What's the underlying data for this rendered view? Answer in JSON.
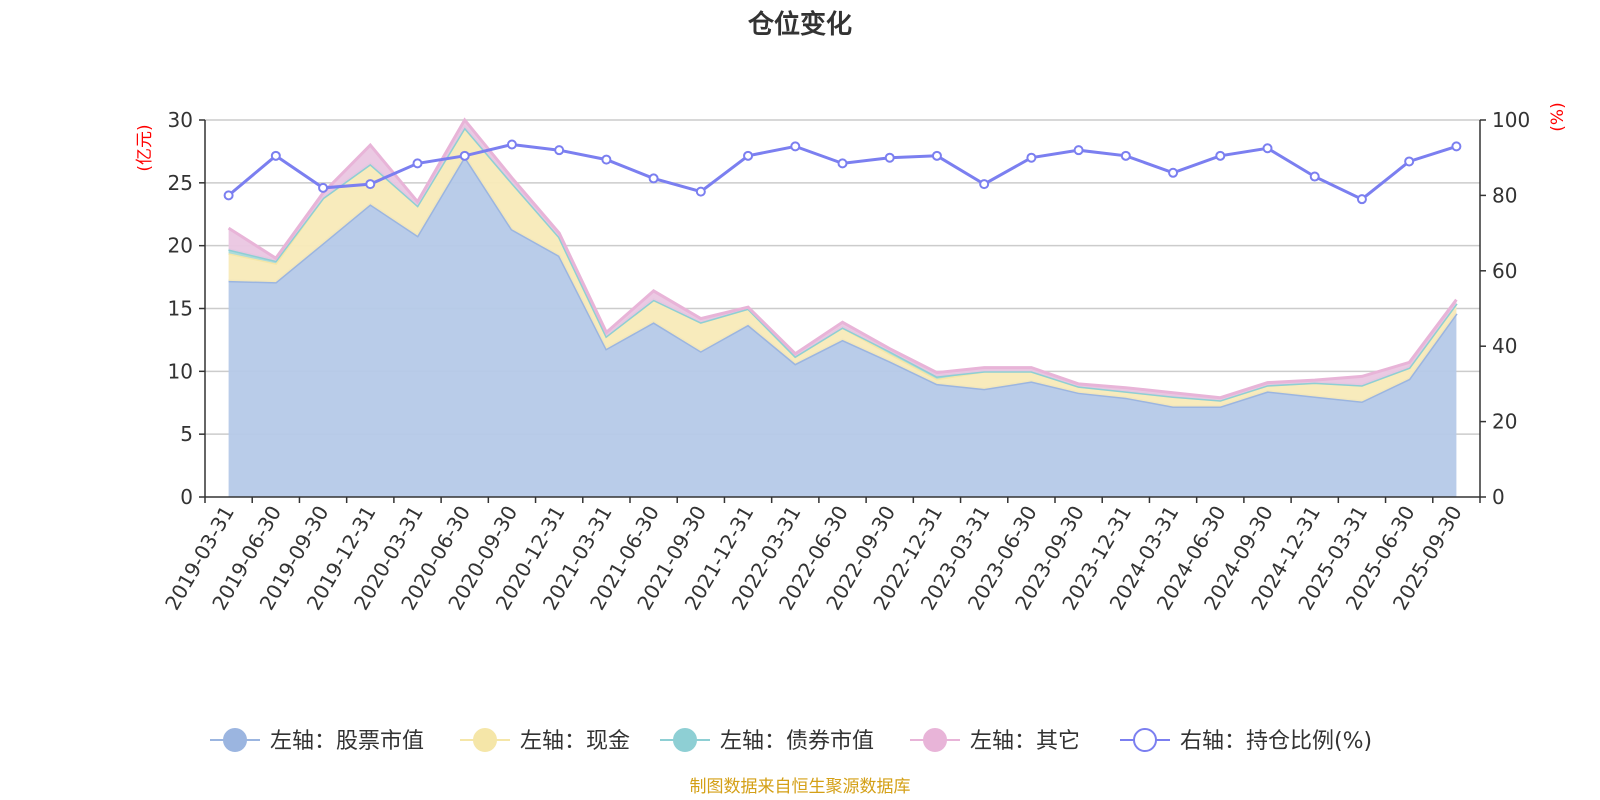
{
  "chart_data": {
    "type": "area",
    "title": "仓位变化",
    "categories": [
      "2019-03-31",
      "2019-06-30",
      "2019-09-30",
      "2019-12-31",
      "2020-03-31",
      "2020-06-30",
      "2020-09-30",
      "2020-12-31",
      "2021-03-31",
      "2021-06-30",
      "2021-09-30",
      "2021-12-31",
      "2022-03-31",
      "2022-06-30",
      "2022-09-30",
      "2022-12-31",
      "2023-03-31",
      "2023-06-30",
      "2023-09-30",
      "2023-12-31",
      "2024-03-31",
      "2024-06-30",
      "2024-09-30",
      "2024-12-31",
      "2025-03-31",
      "2025-06-30",
      "2025-09-30"
    ],
    "left_axis": {
      "unit": "(亿元)",
      "ylim": [
        0,
        30
      ],
      "ticks": [
        0,
        5,
        10,
        15,
        20,
        25,
        30
      ]
    },
    "right_axis": {
      "unit": "(%)",
      "ylim": [
        0,
        100
      ],
      "ticks": [
        0,
        20,
        40,
        60,
        80,
        100
      ]
    },
    "series": [
      {
        "name": "左轴：股票市值",
        "axis": "left",
        "color": "#9bb5e0",
        "fill": "#b5c9e8",
        "values": [
          17.2,
          17.1,
          20.2,
          23.3,
          20.8,
          27.1,
          21.3,
          19.2,
          11.8,
          13.9,
          11.6,
          13.7,
          10.6,
          12.5,
          10.8,
          9.0,
          8.6,
          9.2,
          8.3,
          7.9,
          7.2,
          7.2,
          8.4,
          8.0,
          7.6,
          9.4,
          14.6
        ]
      },
      {
        "name": "左轴：现金",
        "axis": "left",
        "color": "#f5e6a8",
        "fill": "#f8eab8",
        "values": [
          2.2,
          1.5,
          3.6,
          3.2,
          2.4,
          2.3,
          3.7,
          1.5,
          1.0,
          1.8,
          2.3,
          1.3,
          0.6,
          1.0,
          0.6,
          0.4,
          1.4,
          0.8,
          0.5,
          0.5,
          0.8,
          0.5,
          0.5,
          1.1,
          1.3,
          0.9,
          0.8
        ]
      },
      {
        "name": "左轴：债券市值",
        "axis": "left",
        "color": "#8ecfd4",
        "fill": "#a8dadc",
        "values": [
          0.3,
          0.2,
          0.0,
          0.0,
          0.0,
          0.0,
          0.0,
          0.0,
          0.0,
          0.0,
          0.0,
          0.0,
          0.0,
          0.0,
          0.2,
          0.2,
          0.0,
          0.0,
          0.0,
          0.0,
          0.0,
          0.0,
          0.0,
          0.0,
          0.0,
          0.0,
          0.0
        ]
      },
      {
        "name": "左轴：其它",
        "axis": "left",
        "color": "#e8b4d8",
        "fill": "#eac6e2",
        "values": [
          1.7,
          0.2,
          0.4,
          1.5,
          0.3,
          0.6,
          0.4,
          0.3,
          0.3,
          0.7,
          0.3,
          0.1,
          0.2,
          0.4,
          0.2,
          0.3,
          0.3,
          0.3,
          0.2,
          0.3,
          0.3,
          0.2,
          0.2,
          0.2,
          0.7,
          0.4,
          0.3
        ]
      },
      {
        "name": "右轴：持仓比例(%)",
        "axis": "right",
        "color": "#7b7ff0",
        "values": [
          80.0,
          90.5,
          82.0,
          83.0,
          88.5,
          90.5,
          93.5,
          92.0,
          89.5,
          84.5,
          81.0,
          90.5,
          93.0,
          88.5,
          90.0,
          90.5,
          83.0,
          90.0,
          92.0,
          90.5,
          86.0,
          90.5,
          92.5,
          85.0,
          79.0,
          89.0,
          93.0
        ]
      }
    ],
    "source": "制图数据来自恒生聚源数据库"
  }
}
